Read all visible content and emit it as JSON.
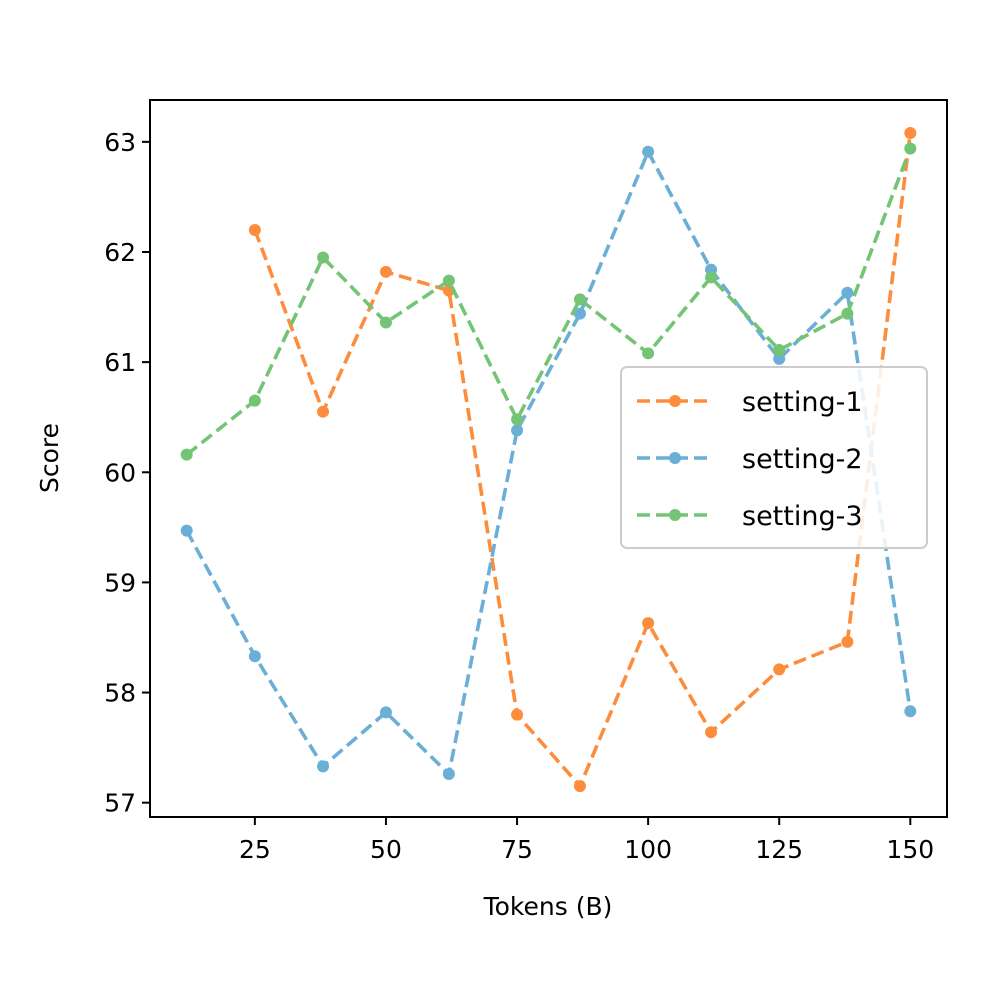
{
  "chart_data": {
    "type": "line",
    "xlabel": "Tokens (B)",
    "ylabel": "Score",
    "xlim": [
      5,
      157
    ],
    "ylim": [
      56.87,
      63.38
    ],
    "xticks": [
      25,
      50,
      75,
      100,
      125,
      150
    ],
    "yticks": [
      57,
      58,
      59,
      60,
      61,
      62,
      63
    ],
    "grid": false,
    "legend_position": "center-right",
    "series": [
      {
        "name": "setting-1",
        "color": "#fd8d3c",
        "style": "dashed",
        "marker": "circle",
        "x": [
          25,
          38,
          50,
          62,
          75,
          87,
          100,
          112,
          125,
          138,
          150
        ],
        "y": [
          62.2,
          60.55,
          61.82,
          61.65,
          57.8,
          57.15,
          58.63,
          57.64,
          58.21,
          58.46,
          63.08
        ]
      },
      {
        "name": "setting-2",
        "color": "#6baed6",
        "style": "dashed",
        "marker": "circle",
        "x": [
          12,
          25,
          38,
          50,
          62,
          75,
          87,
          100,
          112,
          125,
          138,
          150
        ],
        "y": [
          59.47,
          58.33,
          57.33,
          57.82,
          57.26,
          60.38,
          61.44,
          62.91,
          61.84,
          61.03,
          61.63,
          57.83
        ]
      },
      {
        "name": "setting-3",
        "color": "#74c476",
        "style": "dashed",
        "marker": "circle",
        "x": [
          12,
          25,
          38,
          50,
          62,
          75,
          87,
          100,
          112,
          125,
          138,
          150
        ],
        "y": [
          60.16,
          60.65,
          61.95,
          61.36,
          61.74,
          60.48,
          61.57,
          61.08,
          61.77,
          61.11,
          61.44,
          62.94
        ]
      }
    ]
  }
}
